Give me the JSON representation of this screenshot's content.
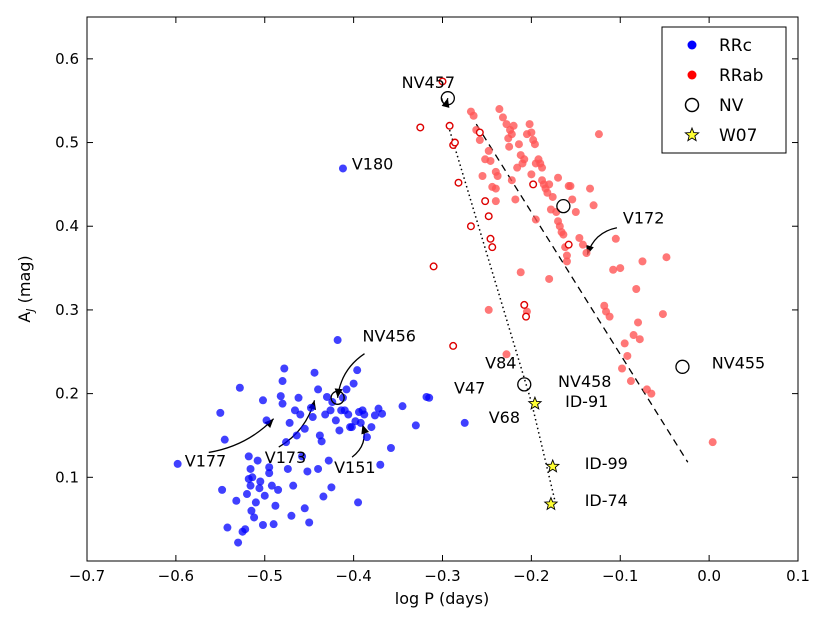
{
  "chart_data": {
    "type": "scatter",
    "xlabel": "log P (days)",
    "ylabel": "A",
    "ylabel_sub": "J",
    "ylabel_unit": " (mag)",
    "xlim": [
      -0.7,
      0.1
    ],
    "ylim": [
      0.0,
      0.65
    ],
    "xticks": [
      "-0.7",
      "-0.6",
      "-0.5",
      "-0.4",
      "-0.3",
      "-0.2",
      "-0.1",
      "0.0",
      "0.1"
    ],
    "yticks": [
      "0.1",
      "0.2",
      "0.3",
      "0.4",
      "0.5",
      "0.6"
    ],
    "legend": {
      "position": "top-right",
      "entries": [
        {
          "label": "RRc",
          "marker": "filled-circle",
          "color": "#0000ff"
        },
        {
          "label": "RRab",
          "marker": "filled-circle",
          "color": "#ff0000"
        },
        {
          "label": "NV",
          "marker": "open-circle",
          "color": "#000000"
        },
        {
          "label": "W07",
          "marker": "star",
          "color": "#ffff33"
        }
      ]
    },
    "series": [
      {
        "name": "RRc",
        "color": "#0000ff",
        "marker": "filled",
        "points": [
          [
            -0.598,
            0.116
          ],
          [
            -0.55,
            0.177
          ],
          [
            -0.545,
            0.145
          ],
          [
            -0.548,
            0.085
          ],
          [
            -0.528,
            0.207
          ],
          [
            -0.532,
            0.072
          ],
          [
            -0.53,
            0.022
          ],
          [
            -0.525,
            0.035
          ],
          [
            -0.522,
            0.038
          ],
          [
            -0.542,
            0.04
          ],
          [
            -0.518,
            0.125
          ],
          [
            -0.516,
            0.11
          ],
          [
            -0.514,
            0.1
          ],
          [
            -0.516,
            0.09
          ],
          [
            -0.52,
            0.08
          ],
          [
            -0.515,
            0.06
          ],
          [
            -0.512,
            0.052
          ],
          [
            -0.518,
            0.098
          ],
          [
            -0.508,
            0.12
          ],
          [
            -0.51,
            0.07
          ],
          [
            -0.505,
            0.095
          ],
          [
            -0.506,
            0.087
          ],
          [
            -0.502,
            0.043
          ],
          [
            -0.5,
            0.078
          ],
          [
            -0.498,
            0.168
          ],
          [
            -0.502,
            0.192
          ],
          [
            -0.495,
            0.112
          ],
          [
            -0.495,
            0.105
          ],
          [
            -0.492,
            0.09
          ],
          [
            -0.49,
            0.044
          ],
          [
            -0.488,
            0.066
          ],
          [
            -0.485,
            0.085
          ],
          [
            -0.482,
            0.197
          ],
          [
            -0.48,
            0.188
          ],
          [
            -0.48,
            0.215
          ],
          [
            -0.478,
            0.23
          ],
          [
            -0.476,
            0.142
          ],
          [
            -0.474,
            0.11
          ],
          [
            -0.472,
            0.165
          ],
          [
            -0.47,
            0.054
          ],
          [
            -0.468,
            0.09
          ],
          [
            -0.466,
            0.18
          ],
          [
            -0.464,
            0.15
          ],
          [
            -0.462,
            0.195
          ],
          [
            -0.46,
            0.175
          ],
          [
            -0.458,
            0.125
          ],
          [
            -0.455,
            0.158
          ],
          [
            -0.455,
            0.063
          ],
          [
            -0.452,
            0.107
          ],
          [
            -0.45,
            0.046
          ],
          [
            -0.448,
            0.183
          ],
          [
            -0.446,
            0.172
          ],
          [
            -0.444,
            0.225
          ],
          [
            -0.44,
            0.205
          ],
          [
            -0.438,
            0.15
          ],
          [
            -0.436,
            0.143
          ],
          [
            -0.434,
            0.077
          ],
          [
            -0.432,
            0.175
          ],
          [
            -0.43,
            0.196
          ],
          [
            -0.428,
            0.12
          ],
          [
            -0.426,
            0.18
          ],
          [
            -0.424,
            0.19
          ],
          [
            -0.42,
            0.168
          ],
          [
            -0.418,
            0.264
          ],
          [
            -0.416,
            0.156
          ],
          [
            -0.414,
            0.18
          ],
          [
            -0.412,
            0.195
          ],
          [
            -0.41,
            0.18
          ],
          [
            -0.408,
            0.205
          ],
          [
            -0.406,
            0.175
          ],
          [
            -0.404,
            0.16
          ],
          [
            -0.402,
            0.16
          ],
          [
            -0.4,
            0.212
          ],
          [
            -0.398,
            0.167
          ],
          [
            -0.396,
            0.228
          ],
          [
            -0.395,
            0.07
          ],
          [
            -0.394,
            0.178
          ],
          [
            -0.392,
            0.165
          ],
          [
            -0.39,
            0.18
          ],
          [
            -0.388,
            0.175
          ],
          [
            -0.385,
            0.148
          ],
          [
            -0.38,
            0.16
          ],
          [
            -0.376,
            0.174
          ],
          [
            -0.372,
            0.182
          ],
          [
            -0.37,
            0.115
          ],
          [
            -0.368,
            0.176
          ],
          [
            -0.358,
            0.135
          ],
          [
            -0.345,
            0.185
          ],
          [
            -0.33,
            0.162
          ],
          [
            -0.318,
            0.196
          ],
          [
            -0.412,
            0.469
          ],
          [
            -0.315,
            0.195
          ],
          [
            -0.275,
            0.165
          ],
          [
            -0.425,
            0.088
          ],
          [
            -0.44,
            0.11
          ]
        ]
      },
      {
        "name": "RRab (filled)",
        "color": "#ff5555",
        "marker": "filled",
        "points": [
          [
            -0.268,
            0.537
          ],
          [
            -0.265,
            0.532
          ],
          [
            -0.262,
            0.515
          ],
          [
            -0.258,
            0.503
          ],
          [
            -0.252,
            0.48
          ],
          [
            -0.248,
            0.49
          ],
          [
            -0.246,
            0.478
          ],
          [
            -0.244,
            0.447
          ],
          [
            -0.24,
            0.465
          ],
          [
            -0.238,
            0.46
          ],
          [
            -0.236,
            0.54
          ],
          [
            -0.232,
            0.53
          ],
          [
            -0.228,
            0.522
          ],
          [
            -0.226,
            0.505
          ],
          [
            -0.225,
            0.495
          ],
          [
            -0.224,
            0.515
          ],
          [
            -0.222,
            0.51
          ],
          [
            -0.22,
            0.52
          ],
          [
            -0.218,
            0.432
          ],
          [
            -0.216,
            0.47
          ],
          [
            -0.214,
            0.498
          ],
          [
            -0.212,
            0.485
          ],
          [
            -0.21,
            0.475
          ],
          [
            -0.208,
            0.48
          ],
          [
            -0.205,
            0.51
          ],
          [
            -0.202,
            0.522
          ],
          [
            -0.2,
            0.512
          ],
          [
            -0.2,
            0.462
          ],
          [
            -0.198,
            0.503
          ],
          [
            -0.196,
            0.498
          ],
          [
            -0.195,
            0.475
          ],
          [
            -0.192,
            0.48
          ],
          [
            -0.19,
            0.475
          ],
          [
            -0.188,
            0.47
          ],
          [
            -0.186,
            0.45
          ],
          [
            -0.184,
            0.445
          ],
          [
            -0.182,
            0.44
          ],
          [
            -0.18,
            0.45
          ],
          [
            -0.178,
            0.42
          ],
          [
            -0.176,
            0.435
          ],
          [
            -0.172,
            0.417
          ],
          [
            -0.17,
            0.406
          ],
          [
            -0.168,
            0.4
          ],
          [
            -0.166,
            0.393
          ],
          [
            -0.164,
            0.39
          ],
          [
            -0.162,
            0.375
          ],
          [
            -0.16,
            0.365
          ],
          [
            -0.158,
            0.448
          ],
          [
            -0.156,
            0.448
          ],
          [
            -0.154,
            0.432
          ],
          [
            -0.15,
            0.417
          ],
          [
            -0.146,
            0.386
          ],
          [
            -0.142,
            0.378
          ],
          [
            -0.138,
            0.368
          ],
          [
            -0.134,
            0.445
          ],
          [
            -0.13,
            0.425
          ],
          [
            -0.124,
            0.51
          ],
          [
            -0.118,
            0.305
          ],
          [
            -0.116,
            0.298
          ],
          [
            -0.112,
            0.292
          ],
          [
            -0.108,
            0.348
          ],
          [
            -0.105,
            0.385
          ],
          [
            -0.1,
            0.35
          ],
          [
            -0.098,
            0.23
          ],
          [
            -0.095,
            0.26
          ],
          [
            -0.092,
            0.245
          ],
          [
            -0.088,
            0.215
          ],
          [
            -0.085,
            0.27
          ],
          [
            -0.082,
            0.325
          ],
          [
            -0.08,
            0.285
          ],
          [
            -0.078,
            0.265
          ],
          [
            -0.075,
            0.358
          ],
          [
            -0.07,
            0.205
          ],
          [
            -0.065,
            0.2
          ],
          [
            -0.048,
            0.363
          ],
          [
            -0.052,
            0.295
          ],
          [
            -0.212,
            0.345
          ],
          [
            -0.228,
            0.247
          ],
          [
            -0.24,
            0.43
          ],
          [
            -0.248,
            0.3
          ],
          [
            -0.18,
            0.337
          ],
          [
            -0.195,
            0.408
          ],
          [
            -0.188,
            0.455
          ],
          [
            -0.16,
            0.358
          ],
          [
            0.004,
            0.142
          ],
          [
            -0.205,
            0.298
          ],
          [
            -0.222,
            0.455
          ],
          [
            -0.255,
            0.46
          ],
          [
            -0.24,
            0.445
          ],
          [
            -0.17,
            0.458
          ]
        ]
      },
      {
        "name": "RRab (open)",
        "color": "#dd0000",
        "marker": "open",
        "points": [
          [
            -0.3,
            0.573
          ],
          [
            -0.325,
            0.518
          ],
          [
            -0.292,
            0.52
          ],
          [
            -0.288,
            0.497
          ],
          [
            -0.286,
            0.5
          ],
          [
            -0.282,
            0.452
          ],
          [
            -0.258,
            0.512
          ],
          [
            -0.252,
            0.43
          ],
          [
            -0.248,
            0.412
          ],
          [
            -0.246,
            0.385
          ],
          [
            -0.244,
            0.375
          ],
          [
            -0.268,
            0.4
          ],
          [
            -0.31,
            0.352
          ],
          [
            -0.288,
            0.257
          ],
          [
            -0.208,
            0.306
          ],
          [
            -0.206,
            0.292
          ],
          [
            -0.198,
            0.45
          ],
          [
            -0.158,
            0.378
          ]
        ]
      }
    ],
    "nv_points": [
      {
        "name": "NV457",
        "x": -0.294,
        "y": 0.553
      },
      {
        "name": "NV456",
        "x": -0.418,
        "y": 0.195
      },
      {
        "name": "NV458",
        "x": -0.208,
        "y": 0.211
      },
      {
        "name": "NV455",
        "x": -0.03,
        "y": 0.232
      },
      {
        "name": "NV",
        "x": -0.164,
        "y": 0.424
      }
    ],
    "w07_points": [
      {
        "name": "ID-91",
        "x": -0.196,
        "y": 0.188
      },
      {
        "name": "ID-99",
        "x": -0.176,
        "y": 0.113
      },
      {
        "name": "ID-74",
        "x": -0.178,
        "y": 0.068
      }
    ],
    "dashed_fit": {
      "x": [
        -0.262,
        -0.024
      ],
      "y": [
        0.522,
        0.118
      ]
    },
    "dotted_fit": {
      "x": [
        -0.292,
        -0.2,
        -0.172
      ],
      "y": [
        0.515,
        0.19,
        0.065
      ]
    },
    "annotations": [
      {
        "text": "NV457",
        "x": -0.346,
        "y": 0.565,
        "arrow_to": [
          -0.294,
          0.553
        ]
      },
      {
        "text": "V180",
        "x": -0.402,
        "y": 0.468
      },
      {
        "text": "V172",
        "x": -0.097,
        "y": 0.403,
        "arrow_to": [
          -0.137,
          0.366
        ]
      },
      {
        "text": "NV456",
        "x": -0.39,
        "y": 0.262,
        "arrow_to": [
          -0.418,
          0.195
        ]
      },
      {
        "text": "V84",
        "x": -0.252,
        "y": 0.23
      },
      {
        "text": "NV458",
        "x": -0.17,
        "y": 0.208
      },
      {
        "text": "NV455",
        "x": 0.003,
        "y": 0.23
      },
      {
        "text": "V47",
        "x": -0.287,
        "y": 0.2
      },
      {
        "text": "V68",
        "x": -0.248,
        "y": 0.165
      },
      {
        "text": "ID-91",
        "x": -0.162,
        "y": 0.184
      },
      {
        "text": "ID-99",
        "x": -0.14,
        "y": 0.11
      },
      {
        "text": "ID-74",
        "x": -0.14,
        "y": 0.066
      },
      {
        "text": "V177",
        "x": -0.59,
        "y": 0.113,
        "arrow_to": [
          -0.49,
          0.17
        ]
      },
      {
        "text": "V173",
        "x": -0.5,
        "y": 0.117,
        "arrow_to": [
          -0.444,
          0.192
        ]
      },
      {
        "text": "V151",
        "x": -0.422,
        "y": 0.105,
        "arrow_to": [
          -0.39,
          0.163
        ]
      }
    ]
  }
}
